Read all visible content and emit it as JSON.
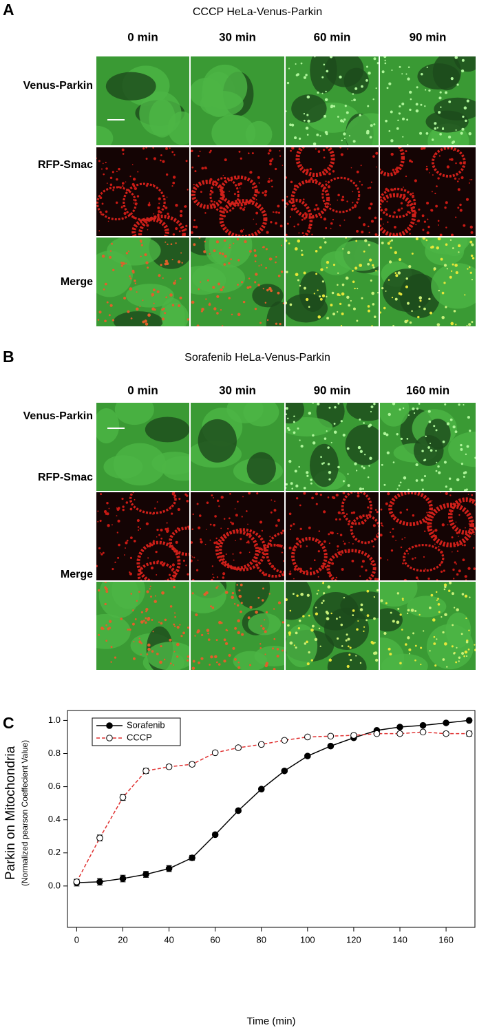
{
  "panel_a": {
    "letter": "A",
    "title": "CCCP HeLa-Venus-Parkin",
    "columns": [
      "0 min",
      "30 min",
      "60 min",
      "90 min"
    ],
    "rows": [
      "Venus-Parkin",
      "RFP-Smac",
      "Merge"
    ]
  },
  "panel_b": {
    "letter": "B",
    "title": "Sorafenib HeLa-Venus-Parkin",
    "columns": [
      "0 min",
      "30 min",
      "90 min",
      "160 min"
    ],
    "rows": [
      "Venus-Parkin",
      "RFP-Smac",
      "Merge"
    ]
  },
  "panel_c": {
    "letter": "C"
  },
  "chart_data": {
    "type": "line",
    "x_label": "Time (min)",
    "y_label": "Parkin on Mitochondria",
    "y_sublabel": "(Normalized pearson Coeffecient Value)",
    "x": [
      0,
      10,
      20,
      30,
      40,
      50,
      60,
      70,
      80,
      90,
      100,
      110,
      120,
      130,
      140,
      150,
      160,
      170
    ],
    "series": [
      {
        "name": "Sorafenib",
        "color": "#000000",
        "linestyle": "solid",
        "marker": "filled",
        "values": [
          0.02,
          0.025,
          0.045,
          0.07,
          0.105,
          0.17,
          0.31,
          0.455,
          0.585,
          0.695,
          0.785,
          0.845,
          0.895,
          0.94,
          0.96,
          0.97,
          0.985,
          1.0
        ],
        "errors": [
          0.02,
          0.02,
          0.02,
          0.018,
          0.018,
          0.015,
          0.012,
          0.01,
          0.01,
          0.01,
          0.01,
          0.008,
          0.008,
          0.008,
          0.008,
          0.008,
          0.008,
          0.008
        ]
      },
      {
        "name": "CCCP",
        "color": "#e03030",
        "linestyle": "dashed",
        "marker": "open",
        "values": [
          0.025,
          0.29,
          0.535,
          0.695,
          0.72,
          0.735,
          0.805,
          0.835,
          0.855,
          0.88,
          0.9,
          0.905,
          0.91,
          0.92,
          0.92,
          0.93,
          0.92,
          0.92
        ],
        "errors": [
          0.015,
          0.018,
          0.018,
          0.015,
          0.012,
          0.012,
          0.01,
          0.01,
          0.01,
          0.01,
          0.01,
          0.01,
          0.01,
          0.01,
          0.01,
          0.01,
          0.01,
          0.015
        ]
      }
    ],
    "xlim": [
      -4,
      172.5
    ],
    "ylim": [
      -0.25,
      1.06
    ],
    "xticks": [
      0,
      20,
      40,
      60,
      80,
      100,
      120,
      140,
      160
    ],
    "yticks": [
      {
        "value": 0,
        "label": "0.0"
      },
      0.2,
      0.4,
      0.6,
      0.8,
      {
        "value": 1,
        "label": "1.0"
      }
    ],
    "legend": "upper left"
  }
}
